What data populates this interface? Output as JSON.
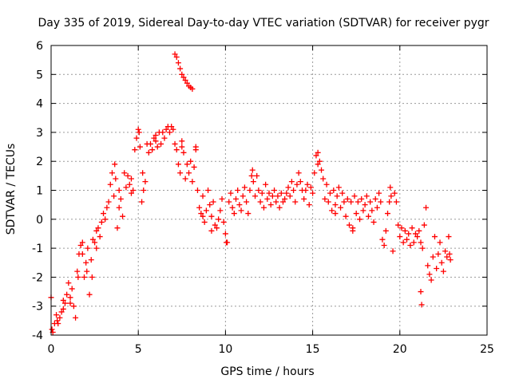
{
  "chart_data": {
    "type": "scatter",
    "title": "Day 335 of 2019, Sidereal Day-to-day VTEC variation (SDTVAR) for receiver pygr",
    "xlabel": "GPS time / hours",
    "ylabel": "SDTVAR / TECUs",
    "xlim": [
      0,
      25
    ],
    "ylim": [
      -4,
      6
    ],
    "xticks": [
      "0",
      "5",
      "10",
      "15",
      "20",
      "25"
    ],
    "yticks": [
      "-4",
      "-3",
      "-2",
      "-1",
      "0",
      "1",
      "2",
      "3",
      "4",
      "5",
      "6"
    ],
    "grid": true,
    "marker": "+",
    "color": "#ff0000",
    "series": [
      {
        "name": "SDTVAR",
        "points": [
          [
            0.0,
            -2.7
          ],
          [
            0.1,
            -3.9
          ],
          [
            0.2,
            -3.6
          ],
          [
            0.3,
            -3.3
          ],
          [
            0.4,
            -3.6
          ],
          [
            0.5,
            -3.4
          ],
          [
            0.6,
            -3.2
          ],
          [
            0.7,
            -2.8
          ],
          [
            0.8,
            -2.9
          ],
          [
            0.9,
            -2.6
          ],
          [
            1.0,
            -2.2
          ],
          [
            1.1,
            -2.7
          ],
          [
            1.2,
            -2.4
          ],
          [
            1.3,
            -3.0
          ],
          [
            1.4,
            -3.4
          ],
          [
            1.5,
            -1.8
          ],
          [
            1.6,
            -1.2
          ],
          [
            1.7,
            -0.9
          ],
          [
            1.8,
            -1.2
          ],
          [
            1.9,
            -2.0
          ],
          [
            2.0,
            -1.5
          ],
          [
            2.1,
            -1.0
          ],
          [
            2.2,
            -2.6
          ],
          [
            2.3,
            -1.4
          ],
          [
            2.4,
            -0.7
          ],
          [
            2.5,
            -0.8
          ],
          [
            2.6,
            -0.4
          ],
          [
            2.7,
            -0.3
          ],
          [
            2.8,
            -0.6
          ],
          [
            2.9,
            -0.1
          ],
          [
            3.0,
            0.2
          ],
          [
            3.1,
            0.0
          ],
          [
            3.2,
            0.4
          ],
          [
            3.3,
            0.6
          ],
          [
            3.4,
            1.2
          ],
          [
            3.5,
            1.6
          ],
          [
            3.6,
            0.8
          ],
          [
            3.7,
            1.4
          ],
          [
            3.8,
            -0.3
          ],
          [
            3.9,
            1.0
          ],
          [
            4.0,
            0.7
          ],
          [
            4.1,
            0.1
          ],
          [
            4.2,
            1.6
          ],
          [
            4.3,
            1.1
          ],
          [
            4.4,
            1.5
          ],
          [
            4.5,
            1.2
          ],
          [
            4.6,
            1.4
          ],
          [
            4.7,
            1.0
          ],
          [
            4.8,
            2.4
          ],
          [
            4.9,
            2.8
          ],
          [
            5.0,
            3.1
          ],
          [
            5.1,
            2.5
          ],
          [
            5.2,
            0.6
          ],
          [
            5.3,
            1.0
          ],
          [
            5.4,
            1.3
          ],
          [
            5.5,
            2.6
          ],
          [
            5.6,
            2.3
          ],
          [
            5.7,
            2.6
          ],
          [
            5.8,
            2.4
          ],
          [
            5.9,
            2.8
          ],
          [
            6.0,
            2.9
          ],
          [
            6.1,
            2.5
          ],
          [
            6.2,
            3.0
          ],
          [
            6.3,
            2.6
          ],
          [
            6.4,
            3.0
          ],
          [
            6.5,
            2.8
          ],
          [
            6.6,
            3.1
          ],
          [
            6.7,
            3.2
          ],
          [
            6.8,
            3.0
          ],
          [
            6.9,
            3.2
          ],
          [
            7.0,
            3.1
          ],
          [
            7.1,
            2.6
          ],
          [
            7.2,
            2.4
          ],
          [
            7.3,
            1.9
          ],
          [
            7.4,
            1.6
          ],
          [
            7.5,
            2.5
          ],
          [
            7.6,
            2.3
          ],
          [
            7.7,
            1.4
          ],
          [
            7.8,
            1.9
          ],
          [
            7.9,
            1.6
          ],
          [
            8.0,
            2.0
          ],
          [
            8.1,
            1.3
          ],
          [
            8.2,
            1.8
          ],
          [
            8.3,
            2.4
          ],
          [
            8.4,
            1.0
          ],
          [
            8.5,
            0.4
          ],
          [
            8.6,
            0.2
          ],
          [
            8.7,
            0.8
          ],
          [
            8.8,
            -0.1
          ],
          [
            8.9,
            0.3
          ],
          [
            9.0,
            1.0
          ],
          [
            9.1,
            0.5
          ],
          [
            9.2,
            0.1
          ],
          [
            9.3,
            0.6
          ],
          [
            9.4,
            -0.2
          ],
          [
            9.5,
            -0.3
          ],
          [
            9.6,
            0.0
          ],
          [
            9.7,
            0.3
          ],
          [
            9.8,
            0.7
          ],
          [
            9.9,
            -0.1
          ],
          [
            10.0,
            -0.5
          ],
          [
            10.1,
            -0.8
          ],
          [
            10.2,
            0.6
          ],
          [
            10.3,
            0.9
          ],
          [
            10.4,
            0.4
          ],
          [
            10.5,
            0.2
          ],
          [
            10.6,
            0.7
          ],
          [
            10.7,
            1.0
          ],
          [
            10.8,
            0.5
          ],
          [
            10.9,
            0.3
          ],
          [
            11.0,
            0.8
          ],
          [
            11.1,
            1.1
          ],
          [
            11.2,
            0.6
          ],
          [
            11.3,
            0.2
          ],
          [
            11.4,
            1.0
          ],
          [
            11.5,
            1.5
          ],
          [
            11.6,
            1.3
          ],
          [
            11.7,
            0.8
          ],
          [
            11.8,
            1.5
          ],
          [
            11.9,
            1.0
          ],
          [
            12.0,
            0.6
          ],
          [
            12.1,
            0.9
          ],
          [
            12.2,
            0.4
          ],
          [
            12.3,
            1.2
          ],
          [
            12.4,
            0.7
          ],
          [
            12.5,
            0.9
          ],
          [
            12.6,
            0.5
          ],
          [
            12.7,
            0.8
          ],
          [
            12.8,
            1.0
          ],
          [
            12.9,
            0.6
          ],
          [
            13.0,
            0.8
          ],
          [
            13.1,
            0.4
          ],
          [
            13.2,
            0.9
          ],
          [
            13.3,
            0.6
          ],
          [
            13.4,
            0.7
          ],
          [
            13.5,
            0.9
          ],
          [
            13.6,
            1.1
          ],
          [
            13.7,
            0.8
          ],
          [
            13.8,
            1.3
          ],
          [
            13.9,
            1.0
          ],
          [
            14.0,
            0.6
          ],
          [
            14.1,
            1.2
          ],
          [
            14.2,
            1.6
          ],
          [
            14.3,
            1.3
          ],
          [
            14.4,
            1.0
          ],
          [
            14.5,
            0.7
          ],
          [
            14.6,
            1.0
          ],
          [
            14.7,
            1.2
          ],
          [
            14.8,
            0.5
          ],
          [
            14.9,
            1.1
          ],
          [
            15.0,
            0.9
          ],
          [
            15.1,
            1.6
          ],
          [
            15.2,
            2.2
          ],
          [
            15.3,
            1.9
          ],
          [
            15.4,
            2.0
          ],
          [
            15.5,
            1.7
          ],
          [
            15.6,
            1.4
          ],
          [
            15.7,
            0.7
          ],
          [
            15.8,
            1.2
          ],
          [
            15.9,
            0.6
          ],
          [
            16.0,
            0.9
          ],
          [
            16.1,
            0.3
          ],
          [
            16.2,
            1.0
          ],
          [
            16.3,
            0.2
          ],
          [
            16.4,
            0.8
          ],
          [
            16.5,
            1.1
          ],
          [
            16.6,
            0.4
          ],
          [
            16.7,
            0.9
          ],
          [
            16.8,
            0.6
          ],
          [
            16.9,
            0.1
          ],
          [
            17.0,
            0.7
          ],
          [
            17.1,
            -0.2
          ],
          [
            17.2,
            0.6
          ],
          [
            17.3,
            -0.3
          ],
          [
            17.4,
            0.8
          ],
          [
            17.5,
            0.2
          ],
          [
            17.6,
            0.6
          ],
          [
            17.7,
            0.0
          ],
          [
            17.8,
            0.7
          ],
          [
            17.9,
            0.3
          ],
          [
            18.0,
            0.5
          ],
          [
            18.1,
            0.8
          ],
          [
            18.2,
            0.1
          ],
          [
            18.3,
            0.6
          ],
          [
            18.4,
            0.3
          ],
          [
            18.5,
            -0.1
          ],
          [
            18.6,
            0.7
          ],
          [
            18.7,
            0.4
          ],
          [
            18.8,
            0.9
          ],
          [
            18.9,
            0.6
          ],
          [
            19.0,
            -0.7
          ],
          [
            19.1,
            -0.9
          ],
          [
            19.2,
            -0.4
          ],
          [
            19.3,
            0.2
          ],
          [
            19.4,
            0.6
          ],
          [
            19.5,
            0.8
          ],
          [
            19.6,
            -1.1
          ],
          [
            19.7,
            0.9
          ],
          [
            19.8,
            0.6
          ],
          [
            19.9,
            -0.2
          ],
          [
            20.0,
            -0.6
          ],
          [
            20.1,
            -0.3
          ],
          [
            20.2,
            -0.8
          ],
          [
            20.3,
            -0.4
          ],
          [
            20.4,
            -0.7
          ],
          [
            20.5,
            -0.5
          ],
          [
            20.6,
            -0.9
          ],
          [
            20.7,
            -0.3
          ],
          [
            20.8,
            -0.8
          ],
          [
            20.9,
            -0.5
          ],
          [
            21.0,
            -0.6
          ],
          [
            21.1,
            -0.4
          ],
          [
            21.2,
            -0.8
          ],
          [
            21.3,
            -1.0
          ],
          [
            21.4,
            -0.2
          ],
          [
            21.5,
            0.4
          ],
          [
            21.6,
            -1.6
          ],
          [
            21.7,
            -1.9
          ],
          [
            21.8,
            -2.1
          ],
          [
            21.9,
            -1.3
          ],
          [
            22.0,
            -0.6
          ],
          [
            22.1,
            -1.7
          ],
          [
            22.2,
            -1.2
          ],
          [
            22.3,
            -0.8
          ],
          [
            22.4,
            -1.5
          ],
          [
            22.5,
            -1.8
          ],
          [
            22.6,
            -1.1
          ],
          [
            22.7,
            -1.3
          ],
          [
            22.8,
            -0.6
          ],
          [
            22.9,
            -1.4
          ],
          [
            0.05,
            -3.8
          ],
          [
            0.35,
            -3.5
          ],
          [
            0.7,
            -3.1
          ],
          [
            1.1,
            -2.9
          ],
          [
            1.55,
            -2.0
          ],
          [
            1.8,
            -0.8
          ],
          [
            2.05,
            -1.8
          ],
          [
            2.35,
            -2.0
          ],
          [
            2.6,
            -1.0
          ],
          [
            3.65,
            1.9
          ],
          [
            3.9,
            0.4
          ],
          [
            4.6,
            0.9
          ],
          [
            5.05,
            3.0
          ],
          [
            5.25,
            1.6
          ],
          [
            6.0,
            2.7
          ],
          [
            7.5,
            2.7
          ],
          [
            8.3,
            2.5
          ],
          [
            8.7,
            0.1
          ],
          [
            9.2,
            -0.4
          ],
          [
            10.05,
            -0.8
          ],
          [
            11.55,
            1.7
          ],
          [
            15.3,
            2.3
          ],
          [
            16.3,
            0.5
          ],
          [
            17.3,
            -0.4
          ],
          [
            19.45,
            1.1
          ],
          [
            21.2,
            -2.5
          ],
          [
            21.25,
            -2.95
          ],
          [
            22.85,
            -1.2
          ],
          [
            7.1,
            5.7
          ],
          [
            7.2,
            5.6
          ],
          [
            7.3,
            5.4
          ],
          [
            7.4,
            5.2
          ],
          [
            7.5,
            5.0
          ],
          [
            7.6,
            4.9
          ],
          [
            7.7,
            4.8
          ],
          [
            7.8,
            4.7
          ],
          [
            7.9,
            4.6
          ],
          [
            8.0,
            4.55
          ],
          [
            8.1,
            4.5
          ]
        ]
      }
    ]
  }
}
